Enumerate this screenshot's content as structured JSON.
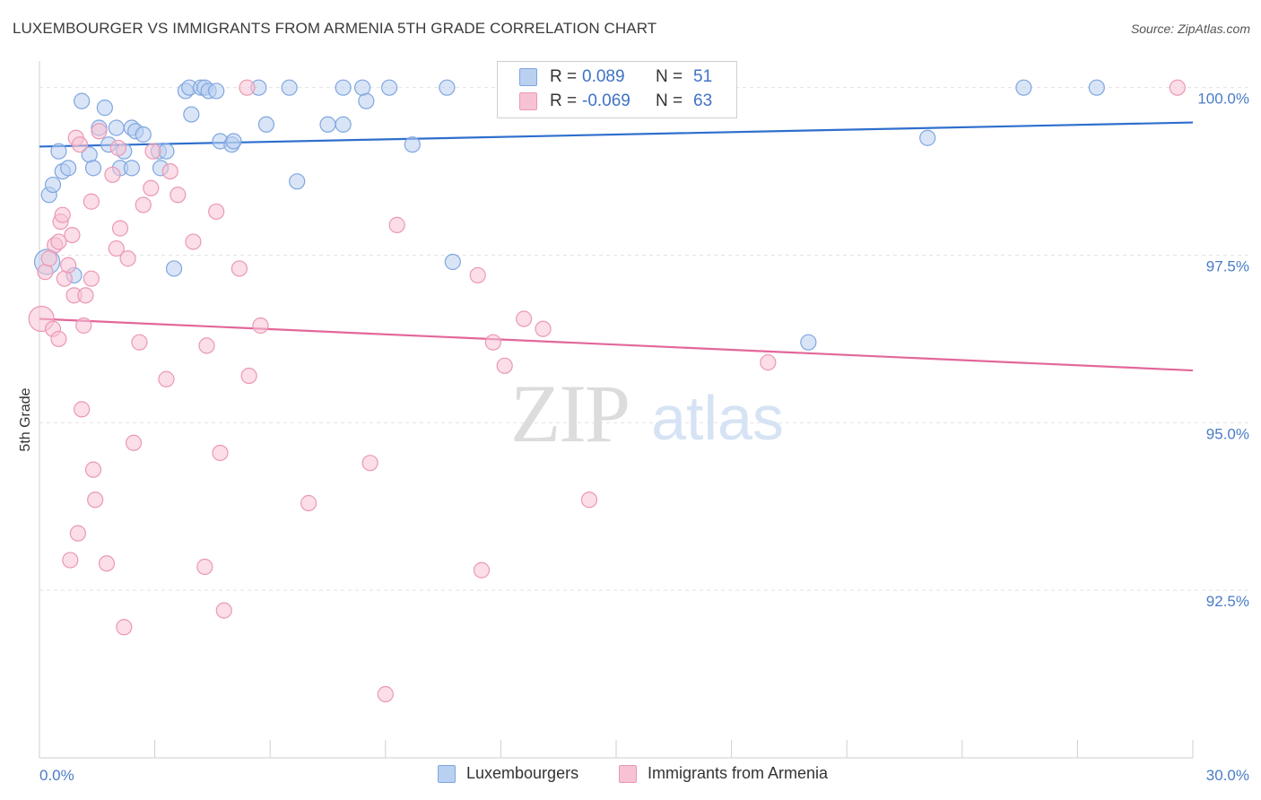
{
  "title": "LUXEMBOURGER VS IMMIGRANTS FROM ARMENIA 5TH GRADE CORRELATION CHART",
  "source": "Source: ZipAtlas.com",
  "watermark": {
    "zip": "ZIP",
    "atlas": "atlas"
  },
  "colors": {
    "blue_fill": "#b9d0f1",
    "blue_stroke": "#7fa6e0",
    "blue_line": "#2e6fcd",
    "pink_fill": "#f7c3d4",
    "pink_stroke": "#eb98b4",
    "pink_line": "#e2679a",
    "tick": "#4a7cc7"
  },
  "legend": {
    "rows": [
      {
        "r_label": "R =",
        "r_value": "0.089",
        "n_label": "N =",
        "n_value": "51"
      },
      {
        "r_label": "R =",
        "r_value": "-0.069",
        "n_label": "N =",
        "n_value": "63"
      }
    ]
  },
  "bottom_legend": {
    "series1": "Luxembourgers",
    "series2": "Immigrants from Armenia"
  },
  "chart_data": {
    "type": "scatter",
    "title": "LUXEMBOURGER VS IMMIGRANTS FROM ARMENIA 5TH GRADE CORRELATION CHART",
    "xlabel": "",
    "ylabel": "5th Grade",
    "xlim": [
      0,
      30
    ],
    "ylim": [
      90.0,
      100.25
    ],
    "x_tick_labels": [
      "0.0%",
      "30.0%"
    ],
    "y_ticks": [
      {
        "value": 100.0,
        "label": "100.0%"
      },
      {
        "value": 97.5,
        "label": "97.5%"
      },
      {
        "value": 95.0,
        "label": "95.0%"
      },
      {
        "value": 92.5,
        "label": "92.5%"
      }
    ],
    "series": [
      {
        "name": "Luxembourgers",
        "color": "blue",
        "trend": {
          "x": [
            0,
            30
          ],
          "y": [
            99.12,
            99.48
          ]
        },
        "points": [
          {
            "x": 0.2,
            "y": 97.4,
            "big": true
          },
          {
            "x": 0.25,
            "y": 98.4
          },
          {
            "x": 0.35,
            "y": 98.55
          },
          {
            "x": 0.5,
            "y": 99.05
          },
          {
            "x": 0.6,
            "y": 98.75
          },
          {
            "x": 0.75,
            "y": 98.8
          },
          {
            "x": 0.9,
            "y": 97.2
          },
          {
            "x": 1.1,
            "y": 99.8
          },
          {
            "x": 1.3,
            "y": 99.0
          },
          {
            "x": 1.4,
            "y": 98.8
          },
          {
            "x": 1.55,
            "y": 99.4
          },
          {
            "x": 1.7,
            "y": 99.7
          },
          {
            "x": 1.8,
            "y": 99.15
          },
          {
            "x": 2.0,
            "y": 99.4
          },
          {
            "x": 2.1,
            "y": 98.8
          },
          {
            "x": 2.2,
            "y": 99.05
          },
          {
            "x": 2.4,
            "y": 98.8
          },
          {
            "x": 2.4,
            "y": 99.4
          },
          {
            "x": 2.5,
            "y": 99.35
          },
          {
            "x": 2.7,
            "y": 99.3
          },
          {
            "x": 3.1,
            "y": 99.05
          },
          {
            "x": 3.15,
            "y": 98.8
          },
          {
            "x": 3.3,
            "y": 99.05
          },
          {
            "x": 3.5,
            "y": 97.3
          },
          {
            "x": 3.8,
            "y": 99.95
          },
          {
            "x": 3.9,
            "y": 100.0
          },
          {
            "x": 3.95,
            "y": 99.6
          },
          {
            "x": 4.2,
            "y": 100.0
          },
          {
            "x": 4.3,
            "y": 100.0
          },
          {
            "x": 4.4,
            "y": 99.95
          },
          {
            "x": 4.6,
            "y": 99.95
          },
          {
            "x": 4.7,
            "y": 99.2
          },
          {
            "x": 5.0,
            "y": 99.15
          },
          {
            "x": 5.05,
            "y": 99.2
          },
          {
            "x": 5.7,
            "y": 100.0
          },
          {
            "x": 5.9,
            "y": 99.45
          },
          {
            "x": 6.5,
            "y": 100.0
          },
          {
            "x": 6.7,
            "y": 98.6
          },
          {
            "x": 7.5,
            "y": 99.45
          },
          {
            "x": 7.9,
            "y": 100.0
          },
          {
            "x": 7.9,
            "y": 99.45
          },
          {
            "x": 8.5,
            "y": 99.8
          },
          {
            "x": 8.4,
            "y": 100.0
          },
          {
            "x": 9.1,
            "y": 100.0
          },
          {
            "x": 9.7,
            "y": 99.15
          },
          {
            "x": 10.6,
            "y": 100.0
          },
          {
            "x": 10.75,
            "y": 97.4
          },
          {
            "x": 20.0,
            "y": 96.2
          },
          {
            "x": 23.1,
            "y": 99.25
          },
          {
            "x": 25.6,
            "y": 100.0
          },
          {
            "x": 27.5,
            "y": 100.0
          }
        ]
      },
      {
        "name": "Immigrants from Armenia",
        "color": "pink",
        "trend": {
          "x": [
            0,
            30
          ],
          "y": [
            96.55,
            95.78
          ]
        },
        "points": [
          {
            "x": 0.05,
            "y": 96.55,
            "big": true
          },
          {
            "x": 0.15,
            "y": 97.25
          },
          {
            "x": 0.25,
            "y": 97.45
          },
          {
            "x": 0.35,
            "y": 96.4
          },
          {
            "x": 0.4,
            "y": 97.65
          },
          {
            "x": 0.5,
            "y": 97.7
          },
          {
            "x": 0.5,
            "y": 96.25
          },
          {
            "x": 0.55,
            "y": 98.0
          },
          {
            "x": 0.6,
            "y": 98.1
          },
          {
            "x": 0.65,
            "y": 97.15
          },
          {
            "x": 0.75,
            "y": 97.35
          },
          {
            "x": 0.8,
            "y": 92.95
          },
          {
            "x": 0.85,
            "y": 97.8
          },
          {
            "x": 0.9,
            "y": 96.9
          },
          {
            "x": 0.95,
            "y": 99.25
          },
          {
            "x": 1.0,
            "y": 93.35
          },
          {
            "x": 1.05,
            "y": 99.15
          },
          {
            "x": 1.1,
            "y": 95.2
          },
          {
            "x": 1.15,
            "y": 96.45
          },
          {
            "x": 1.2,
            "y": 96.9
          },
          {
            "x": 1.35,
            "y": 97.15
          },
          {
            "x": 1.35,
            "y": 98.3
          },
          {
            "x": 1.4,
            "y": 94.3
          },
          {
            "x": 1.45,
            "y": 93.85
          },
          {
            "x": 1.55,
            "y": 99.35
          },
          {
            "x": 1.75,
            "y": 92.9
          },
          {
            "x": 1.9,
            "y": 98.7
          },
          {
            "x": 2.0,
            "y": 97.6
          },
          {
            "x": 2.05,
            "y": 99.1
          },
          {
            "x": 2.1,
            "y": 97.9
          },
          {
            "x": 2.2,
            "y": 91.95
          },
          {
            "x": 2.3,
            "y": 97.45
          },
          {
            "x": 2.45,
            "y": 94.7
          },
          {
            "x": 2.6,
            "y": 96.2
          },
          {
            "x": 2.7,
            "y": 98.25
          },
          {
            "x": 2.9,
            "y": 98.5
          },
          {
            "x": 2.95,
            "y": 99.05
          },
          {
            "x": 3.3,
            "y": 95.65
          },
          {
            "x": 3.4,
            "y": 98.75
          },
          {
            "x": 3.6,
            "y": 98.4
          },
          {
            "x": 4.0,
            "y": 97.7
          },
          {
            "x": 4.3,
            "y": 92.85
          },
          {
            "x": 4.35,
            "y": 96.15
          },
          {
            "x": 4.6,
            "y": 98.15
          },
          {
            "x": 4.7,
            "y": 94.55
          },
          {
            "x": 4.8,
            "y": 92.2
          },
          {
            "x": 5.2,
            "y": 97.3
          },
          {
            "x": 5.4,
            "y": 100.0
          },
          {
            "x": 5.45,
            "y": 95.7
          },
          {
            "x": 5.75,
            "y": 96.45
          },
          {
            "x": 7.0,
            "y": 93.8
          },
          {
            "x": 8.6,
            "y": 94.4
          },
          {
            "x": 9.0,
            "y": 90.95
          },
          {
            "x": 9.3,
            "y": 97.95
          },
          {
            "x": 11.4,
            "y": 97.2
          },
          {
            "x": 11.5,
            "y": 92.8
          },
          {
            "x": 11.8,
            "y": 96.2
          },
          {
            "x": 12.1,
            "y": 95.85
          },
          {
            "x": 12.6,
            "y": 96.55
          },
          {
            "x": 13.1,
            "y": 96.4
          },
          {
            "x": 14.3,
            "y": 93.85
          },
          {
            "x": 18.95,
            "y": 95.9
          },
          {
            "x": 29.6,
            "y": 100.0
          }
        ]
      }
    ]
  }
}
